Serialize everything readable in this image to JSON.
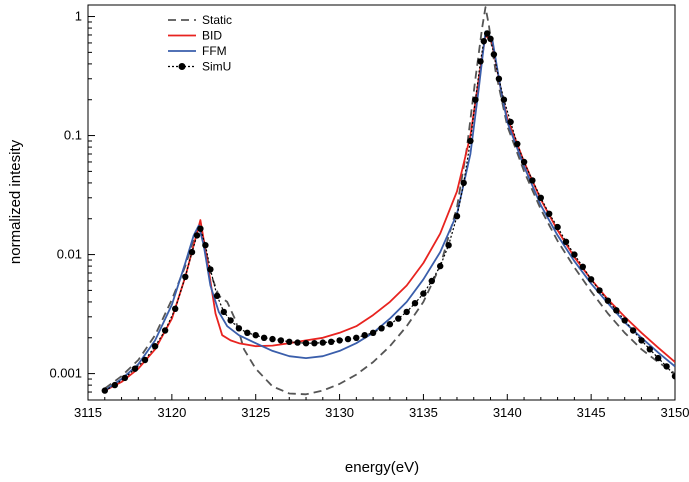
{
  "chart_data": {
    "type": "line",
    "title": "",
    "xlabel": "energy(eV)",
    "ylabel": "normalized intesity",
    "xlim": [
      3115,
      3150
    ],
    "ylim": [
      0.0006,
      1.25
    ],
    "yscale": "log",
    "grid": false,
    "legend_position": "top-left",
    "x_ticks": [
      3115,
      3120,
      3125,
      3130,
      3135,
      3140,
      3145,
      3150
    ],
    "x_tick_labels": [
      "3115",
      "3120",
      "3125",
      "3130",
      "3135",
      "3140",
      "3145",
      "3150"
    ],
    "y_ticks": [
      0.001,
      0.01,
      0.1,
      1
    ],
    "y_tick_labels": [
      "0.001",
      "0.01",
      "0.1",
      "1"
    ],
    "series": [
      {
        "name": "Static",
        "style": "dashed",
        "color": "#555555",
        "x": [
          3116,
          3117,
          3118,
          3119,
          3120,
          3120.8,
          3121.3,
          3121.6,
          3121.9,
          3122.3,
          3122.8,
          3123.3,
          3123.8,
          3124.3,
          3125,
          3126,
          3127,
          3128,
          3129,
          3130,
          3131,
          3132,
          3133,
          3134,
          3135,
          3136,
          3137,
          3137.6,
          3138.1,
          3138.5,
          3138.7,
          3138.9,
          3139.3,
          3140,
          3141,
          3142,
          3143,
          3144,
          3145,
          3146,
          3147,
          3148,
          3149,
          3150
        ],
        "y": [
          0.00075,
          0.00095,
          0.0013,
          0.0021,
          0.0042,
          0.008,
          0.0135,
          0.0175,
          0.0135,
          0.007,
          0.0045,
          0.004,
          0.0028,
          0.0016,
          0.0011,
          0.00078,
          0.00068,
          0.00067,
          0.00072,
          0.00082,
          0.00098,
          0.00125,
          0.0017,
          0.0025,
          0.004,
          0.008,
          0.025,
          0.08,
          0.3,
          0.8,
          1.2,
          0.85,
          0.35,
          0.12,
          0.05,
          0.024,
          0.013,
          0.0078,
          0.0049,
          0.0032,
          0.0022,
          0.0016,
          0.00125,
          0.001
        ]
      },
      {
        "name": "BID",
        "style": "solid",
        "color": "#e8231f",
        "x": [
          3116,
          3117,
          3118,
          3119,
          3120,
          3120.8,
          3121.3,
          3121.7,
          3122.1,
          3122.6,
          3123,
          3123.5,
          3124,
          3125,
          3126,
          3127,
          3128,
          3129,
          3130,
          3131,
          3132,
          3133,
          3134,
          3135,
          3136,
          3137,
          3137.8,
          3138.3,
          3138.7,
          3139.1,
          3139.6,
          3140,
          3141,
          3142,
          3143,
          3144,
          3145,
          3146,
          3147,
          3148,
          3149,
          3150
        ],
        "y": [
          0.00072,
          0.00085,
          0.0011,
          0.0016,
          0.0029,
          0.0065,
          0.012,
          0.0195,
          0.009,
          0.0032,
          0.0021,
          0.0019,
          0.0018,
          0.0017,
          0.00172,
          0.0018,
          0.0019,
          0.002,
          0.0022,
          0.0025,
          0.0031,
          0.004,
          0.0055,
          0.0085,
          0.015,
          0.034,
          0.1,
          0.3,
          0.7,
          0.6,
          0.25,
          0.14,
          0.06,
          0.029,
          0.016,
          0.0095,
          0.0062,
          0.0042,
          0.003,
          0.0022,
          0.00165,
          0.00125
        ]
      },
      {
        "name": "FFM",
        "style": "solid",
        "color": "#3a5eab",
        "x": [
          3116,
          3117,
          3118,
          3119,
          3120,
          3120.8,
          3121.3,
          3121.6,
          3121.9,
          3122.3,
          3122.8,
          3123.3,
          3124,
          3125,
          3126,
          3127,
          3128,
          3129,
          3130,
          3131,
          3132,
          3133,
          3134,
          3135,
          3136,
          3137,
          3137.8,
          3138.3,
          3138.7,
          3139.1,
          3139.6,
          3140,
          3141,
          3142,
          3143,
          3144,
          3145,
          3146,
          3147,
          3148,
          3149,
          3150
        ],
        "y": [
          0.00072,
          0.0009,
          0.0012,
          0.0019,
          0.0038,
          0.0085,
          0.0145,
          0.0175,
          0.012,
          0.0055,
          0.0033,
          0.0025,
          0.0021,
          0.0018,
          0.00155,
          0.0014,
          0.00135,
          0.0014,
          0.00155,
          0.0018,
          0.0022,
          0.0029,
          0.004,
          0.0062,
          0.0105,
          0.022,
          0.07,
          0.25,
          0.75,
          0.65,
          0.25,
          0.13,
          0.055,
          0.026,
          0.0145,
          0.0088,
          0.0057,
          0.0039,
          0.0027,
          0.002,
          0.0015,
          0.00115
        ]
      },
      {
        "name": "SimU",
        "style": "dotted-markers",
        "color": "#000000",
        "x": [
          3116,
          3116.6,
          3117.2,
          3117.8,
          3118.4,
          3119,
          3119.6,
          3120.2,
          3120.8,
          3121.2,
          3121.5,
          3121.7,
          3122,
          3122.3,
          3122.7,
          3123.1,
          3123.5,
          3124,
          3124.5,
          3125,
          3125.5,
          3126,
          3126.5,
          3127,
          3127.5,
          3128,
          3128.5,
          3129,
          3129.5,
          3130,
          3130.5,
          3131,
          3131.5,
          3132,
          3132.5,
          3133,
          3133.5,
          3134,
          3134.5,
          3135,
          3135.5,
          3136,
          3136.5,
          3137,
          3137.4,
          3137.8,
          3138.1,
          3138.4,
          3138.6,
          3138.8,
          3139,
          3139.2,
          3139.5,
          3139.8,
          3140.2,
          3140.6,
          3141,
          3141.5,
          3142,
          3142.5,
          3143,
          3143.5,
          3144,
          3144.5,
          3145,
          3145.5,
          3146,
          3146.5,
          3147,
          3147.5,
          3148,
          3148.5,
          3149,
          3149.5,
          3150
        ],
        "y": [
          0.00072,
          0.0008,
          0.00092,
          0.0011,
          0.0013,
          0.0017,
          0.0023,
          0.0035,
          0.0065,
          0.0105,
          0.0145,
          0.0165,
          0.012,
          0.0075,
          0.0045,
          0.0033,
          0.0028,
          0.0024,
          0.0022,
          0.0021,
          0.002,
          0.00195,
          0.0019,
          0.00185,
          0.00182,
          0.0018,
          0.0018,
          0.00182,
          0.00185,
          0.0019,
          0.00195,
          0.002,
          0.0021,
          0.0022,
          0.0024,
          0.0026,
          0.0029,
          0.0033,
          0.0039,
          0.0047,
          0.006,
          0.008,
          0.012,
          0.021,
          0.04,
          0.09,
          0.2,
          0.42,
          0.62,
          0.72,
          0.65,
          0.48,
          0.3,
          0.2,
          0.13,
          0.085,
          0.06,
          0.042,
          0.03,
          0.022,
          0.017,
          0.0128,
          0.01,
          0.0079,
          0.0062,
          0.005,
          0.0041,
          0.0034,
          0.0028,
          0.0023,
          0.0019,
          0.0016,
          0.00135,
          0.00115,
          0.00095
        ]
      }
    ]
  }
}
